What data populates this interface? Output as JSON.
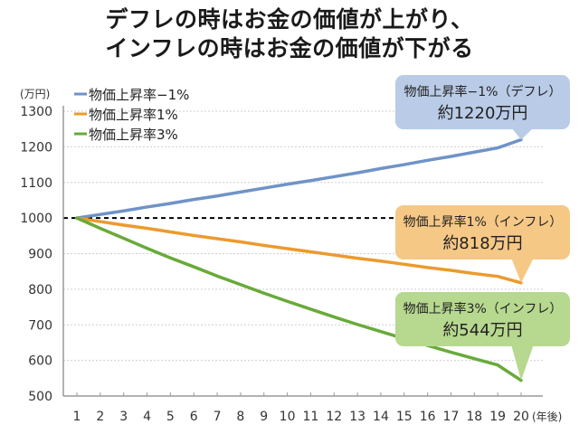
{
  "chart_data": {
    "type": "line",
    "title_lines": [
      "デフレの時はお金の価値が上がり、",
      "インフレの時はお金の価値が下がる"
    ],
    "ylabel": "(万円)",
    "xlabel": "(年後)",
    "ylim": [
      500,
      1300
    ],
    "yticks": [
      500,
      600,
      700,
      800,
      900,
      1000,
      1100,
      1200,
      1300
    ],
    "x": [
      1,
      2,
      3,
      4,
      5,
      6,
      7,
      8,
      9,
      10,
      11,
      12,
      13,
      14,
      15,
      16,
      17,
      18,
      19,
      20
    ],
    "xtick_labels": [
      "1",
      "2",
      "3",
      "4",
      "5",
      "6",
      "7",
      "8",
      "9",
      "10",
      "11",
      "12",
      "13",
      "14",
      "15",
      "16",
      "17",
      "18",
      "19",
      "20"
    ],
    "grid": true,
    "reference_line": {
      "y": 1000,
      "style": "dashed",
      "color": "#000000"
    },
    "legend_position": "top-left",
    "series": [
      {
        "name": "物価上昇率−1%",
        "color": "#6f93c7",
        "values": [
          1000,
          1010,
          1020,
          1031,
          1041,
          1052,
          1062,
          1073,
          1084,
          1095,
          1105,
          1116,
          1127,
          1139,
          1150,
          1162,
          1173,
          1185,
          1197,
          1220
        ]
      },
      {
        "name": "物価上昇率1%",
        "color": "#ec9a2e",
        "values": [
          1000,
          990,
          980,
          971,
          961,
          951,
          942,
          933,
          923,
          914,
          905,
          896,
          887,
          879,
          870,
          861,
          853,
          844,
          836,
          818
        ]
      },
      {
        "name": "物価上昇率3%",
        "color": "#69aa3a",
        "values": [
          1000,
          971,
          943,
          915,
          888,
          863,
          837,
          813,
          789,
          766,
          744,
          722,
          701,
          681,
          661,
          642,
          623,
          605,
          587,
          544
        ]
      }
    ],
    "annotations": [
      {
        "line1": "物価上昇率−1%（デフレ）",
        "line2": "約1220万円",
        "fill": "#b9cbe6",
        "target_x": 20,
        "target_y": 1220
      },
      {
        "line1": "物価上昇率1%（インフレ）",
        "line2": "約818万円",
        "fill": "#f6c886",
        "target_x": 20,
        "target_y": 818
      },
      {
        "line1": "物価上昇率3%（インフレ）",
        "line2": "約544万円",
        "fill": "#b7d88f",
        "target_x": 20,
        "target_y": 544
      }
    ]
  }
}
